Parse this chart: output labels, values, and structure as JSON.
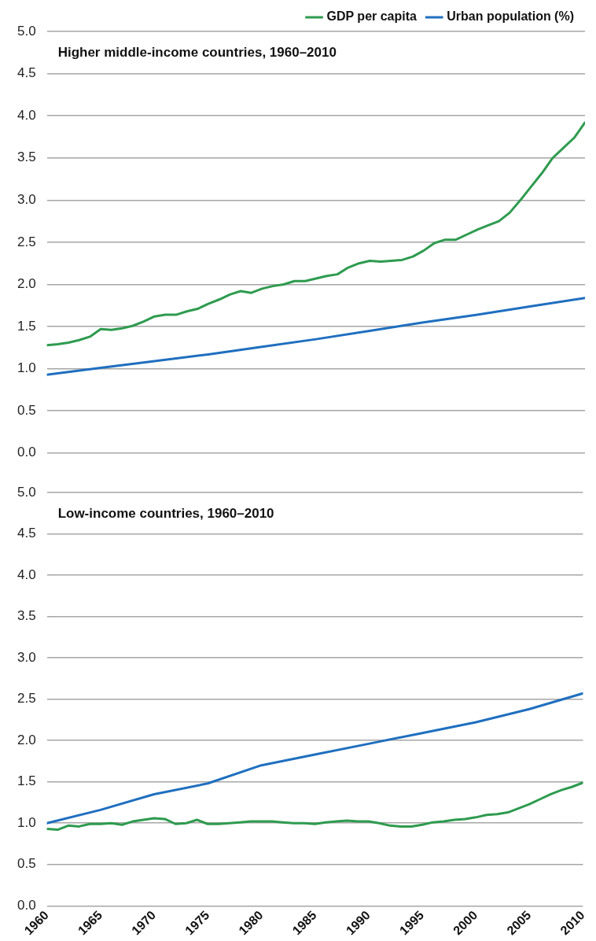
{
  "chart_data": [
    {
      "type": "line",
      "title": "Higher middle-income countries, 1960–2010",
      "x": [
        1960,
        1961,
        1962,
        1963,
        1964,
        1965,
        1966,
        1967,
        1968,
        1969,
        1970,
        1971,
        1972,
        1973,
        1974,
        1975,
        1976,
        1977,
        1978,
        1979,
        1980,
        1981,
        1982,
        1983,
        1984,
        1985,
        1986,
        1987,
        1988,
        1989,
        1990,
        1991,
        1992,
        1993,
        1994,
        1995,
        1996,
        1997,
        1998,
        1999,
        2000,
        2001,
        2002,
        2003,
        2004,
        2005,
        2006,
        2007,
        2008,
        2009,
        2010
      ],
      "series": [
        {
          "name": "GDP per capita",
          "color": "#2e9b4f",
          "values": [
            1.28,
            1.29,
            1.31,
            1.34,
            1.38,
            1.47,
            1.46,
            1.48,
            1.51,
            1.56,
            1.62,
            1.64,
            1.64,
            1.68,
            1.71,
            1.77,
            1.82,
            1.88,
            1.92,
            1.9,
            1.95,
            1.98,
            2.0,
            2.04,
            2.04,
            2.07,
            2.1,
            2.12,
            2.2,
            2.25,
            2.28,
            2.27,
            2.28,
            2.29,
            2.33,
            2.4,
            2.49,
            2.53,
            2.53,
            2.59,
            2.65,
            2.7,
            2.75,
            2.85,
            3.0,
            3.16,
            3.32,
            3.5,
            3.62,
            3.74,
            3.92
          ]
        },
        {
          "name": "Urban population (%)",
          "color": "#1f6fbf",
          "x": [
            1960,
            1965,
            1970,
            1975,
            1980,
            1985,
            1990,
            1995,
            2000,
            2005,
            2010
          ],
          "values": [
            0.93,
            1.01,
            1.09,
            1.17,
            1.26,
            1.35,
            1.45,
            1.55,
            1.64,
            1.74,
            1.84
          ]
        }
      ],
      "xlim": [
        1960,
        2010
      ],
      "xticks": [
        1960,
        1965,
        1970,
        1975,
        1980,
        1985,
        1990,
        1995,
        2000,
        2005,
        2010
      ],
      "ylim": [
        0,
        5
      ],
      "yticks": [
        {
          "value": 0,
          "label": "0.0"
        },
        0.5,
        {
          "value": 1,
          "label": "1.0"
        },
        1.5,
        {
          "value": 2,
          "label": "2.0"
        },
        2.5,
        {
          "value": 3,
          "label": "3.0"
        },
        3.5,
        {
          "value": 4,
          "label": "4.0"
        },
        4.5,
        {
          "value": 5,
          "label": "5.0"
        }
      ],
      "grid": "y",
      "legend": "top right",
      "tick_labels": "y",
      "marker": "none",
      "line_style": "solid"
    },
    {
      "type": "line",
      "title": "Low-income countries, 1960–2010",
      "x": [
        1960,
        1961,
        1962,
        1963,
        1964,
        1965,
        1966,
        1967,
        1968,
        1969,
        1970,
        1971,
        1972,
        1973,
        1974,
        1975,
        1976,
        1977,
        1978,
        1979,
        1980,
        1981,
        1982,
        1983,
        1984,
        1985,
        1986,
        1987,
        1988,
        1989,
        1990,
        1991,
        1992,
        1993,
        1994,
        1995,
        1996,
        1997,
        1998,
        1999,
        2000,
        2001,
        2002,
        2003,
        2004,
        2005,
        2006,
        2007,
        2008,
        2009,
        2010
      ],
      "series": [
        {
          "color": "#2e9b4f",
          "values": [
            0.93,
            0.92,
            0.97,
            0.96,
            0.99,
            0.99,
            1.0,
            0.98,
            1.02,
            1.04,
            1.06,
            1.05,
            0.99,
            1.0,
            1.04,
            0.99,
            0.99,
            1.0,
            1.01,
            1.02,
            1.02,
            1.02,
            1.01,
            1.0,
            1.0,
            0.99,
            1.01,
            1.02,
            1.03,
            1.02,
            1.02,
            1.0,
            0.97,
            0.96,
            0.96,
            0.98,
            1.01,
            1.02,
            1.04,
            1.05,
            1.07,
            1.1,
            1.11,
            1.13,
            1.18,
            1.23,
            1.29,
            1.35,
            1.4,
            1.44,
            1.49
          ]
        },
        {
          "color": "#1f6fbf",
          "x": [
            1960,
            1965,
            1970,
            1975,
            1980,
            1985,
            1990,
            1995,
            2000,
            2005,
            2010
          ],
          "values": [
            1.0,
            1.16,
            1.35,
            1.48,
            1.7,
            1.83,
            1.96,
            2.09,
            2.22,
            2.38,
            2.57
          ]
        }
      ],
      "xlim": [
        1960,
        2010
      ],
      "xticks": [
        1960,
        1965,
        1970,
        1975,
        1980,
        1985,
        1990,
        1995,
        2000,
        2005,
        2010
      ],
      "ylim": [
        0,
        5
      ],
      "yticks": [
        {
          "value": 0,
          "label": "0.0"
        },
        0.5,
        {
          "value": 1,
          "label": "1.0"
        },
        1.5,
        {
          "value": 2,
          "label": "2.0"
        },
        2.5,
        {
          "value": 3,
          "label": "3.0"
        },
        3.5,
        {
          "value": 4,
          "label": "4.0"
        },
        4.5,
        {
          "value": 5,
          "label": "5.0"
        }
      ],
      "grid": "y",
      "marker": "none",
      "line_style": "solid"
    }
  ]
}
